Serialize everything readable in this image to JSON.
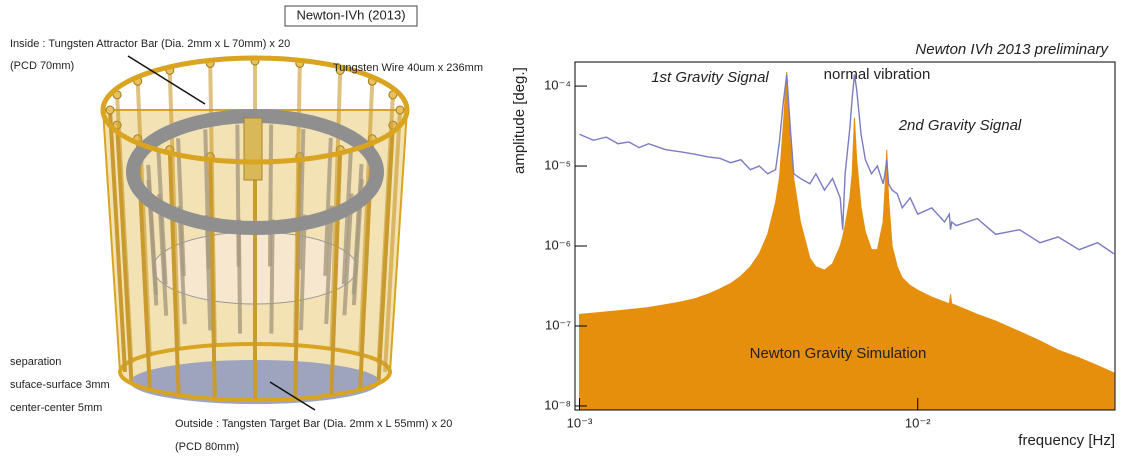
{
  "diagram": {
    "title": "Newton-IVh (2013)",
    "inside_label": "Inside : Tungsten Attractor Bar (Dia. 2mm x L 70mm) x 20",
    "inside_pcd": "(PCD 70mm)",
    "wire_label": "Tungsten Wire 40um x 236mm",
    "separation": [
      "separation",
      "suface-surface 3mm",
      "center-center 5mm"
    ],
    "outside_label": "Outside : Tangsten Target Bar (Dia. 2mm x L 55mm) x 20",
    "outside_pcd": "(PCD 80mm)"
  },
  "chart_data": {
    "type": "line",
    "title": "Newton IVh 2013 preliminary",
    "x_label": "frequency [Hz]",
    "y_label": "amplitude [deg.]",
    "log_x": true,
    "log_y": true,
    "xlim": [
      0.00097,
      0.0383
    ],
    "ylim": [
      8.9e-09,
      0.0002
    ],
    "xticks": [
      {
        "value": 0.001,
        "label": "10⁻³"
      },
      {
        "value": 0.01,
        "label": "10⁻²"
      }
    ],
    "yticks": [
      {
        "value": 1e-08,
        "label": "10⁻⁸"
      },
      {
        "value": 1e-07,
        "label": "10⁻⁷"
      },
      {
        "value": 1e-06,
        "label": "10⁻⁶"
      },
      {
        "value": 1e-05,
        "label": "10⁻⁵"
      },
      {
        "value": 0.0001,
        "label": "10⁻⁴"
      }
    ],
    "annotations": [
      "1st Gravity Signal",
      "normal vibration",
      "2nd Gravity Signal",
      "Newton Gravity Simulation"
    ],
    "x": [
      0.001,
      0.0011,
      0.0012,
      0.0013,
      0.0014,
      0.0015,
      0.0016,
      0.0018,
      0.002,
      0.0022,
      0.0024,
      0.0026,
      0.0028,
      0.003,
      0.0032,
      0.0034,
      0.0036,
      0.0038,
      0.0039,
      0.004,
      0.0041,
      0.0042,
      0.0043,
      0.0045,
      0.0048,
      0.005,
      0.0053,
      0.0056,
      0.0059,
      0.006,
      0.0061,
      0.0063,
      0.0064,
      0.0065,
      0.0066,
      0.0068,
      0.007,
      0.0073,
      0.0076,
      0.0079,
      0.008,
      0.0081,
      0.0082,
      0.0084,
      0.0087,
      0.009,
      0.0095,
      0.01,
      0.011,
      0.012,
      0.0124,
      0.0125,
      0.0126,
      0.013,
      0.015,
      0.017,
      0.02,
      0.023,
      0.026,
      0.03,
      0.034,
      0.038
    ],
    "series": [
      {
        "type": "area",
        "color": "#e68f0c",
        "values": [
          1.4e-07,
          1.45e-07,
          1.5e-07,
          1.55e-07,
          1.6e-07,
          1.65e-07,
          1.7e-07,
          1.85e-07,
          2e-07,
          2.2e-07,
          2.5e-07,
          2.9e-07,
          3.4e-07,
          4.2e-07,
          5.5e-07,
          8e-07,
          1.4e-06,
          3.5e-06,
          7e-06,
          3e-05,
          0.00015,
          2e-05,
          7e-06,
          2e-06,
          7e-07,
          5.5e-07,
          5e-07,
          6e-07,
          1e-06,
          1.3e-06,
          1.8e-06,
          4e-06,
          8e-06,
          4e-05,
          1.2e-05,
          3e-06,
          1.5e-06,
          9e-07,
          9e-07,
          2e-06,
          5e-06,
          1.6e-05,
          4e-06,
          1e-06,
          5.5e-07,
          4e-07,
          3.2e-07,
          2.8e-07,
          2.3e-07,
          2e-07,
          1.9e-07,
          2.5e-07,
          1.9e-07,
          1.8e-07,
          1.4e-07,
          1.15e-07,
          8.5e-08,
          6.5e-08,
          5e-08,
          4e-08,
          3.2e-08,
          2.6e-08
        ]
      },
      {
        "type": "line",
        "color": "#7b7bc4",
        "values": [
          2.5e-05,
          2.1e-05,
          2.3e-05,
          1.9e-05,
          2e-05,
          1.7e-05,
          1.9e-05,
          1.6e-05,
          1.5e-05,
          1.4e-05,
          1.3e-05,
          1.25e-05,
          1.1e-05,
          1.2e-05,
          9e-06,
          1e-05,
          8e-06,
          9e-06,
          2e-05,
          6e-05,
          0.00014,
          3e-05,
          8e-06,
          7e-06,
          6e-06,
          8e-06,
          5e-06,
          7e-06,
          4e-06,
          1.6e-06,
          8e-06,
          3e-05,
          7e-05,
          0.00014,
          9e-05,
          2.5e-05,
          1.2e-05,
          8e-06,
          1e-05,
          6e-06,
          8e-06,
          1.2e-05,
          6e-06,
          5e-06,
          4.5e-06,
          3e-06,
          4e-06,
          2.5e-06,
          3e-06,
          2e-06,
          2.5e-06,
          1.6e-06,
          2e-06,
          1.8e-06,
          2.2e-06,
          1.4e-06,
          1.6e-06,
          1.1e-06,
          1.3e-06,
          9e-07,
          1.1e-06,
          8e-07
        ]
      }
    ]
  }
}
